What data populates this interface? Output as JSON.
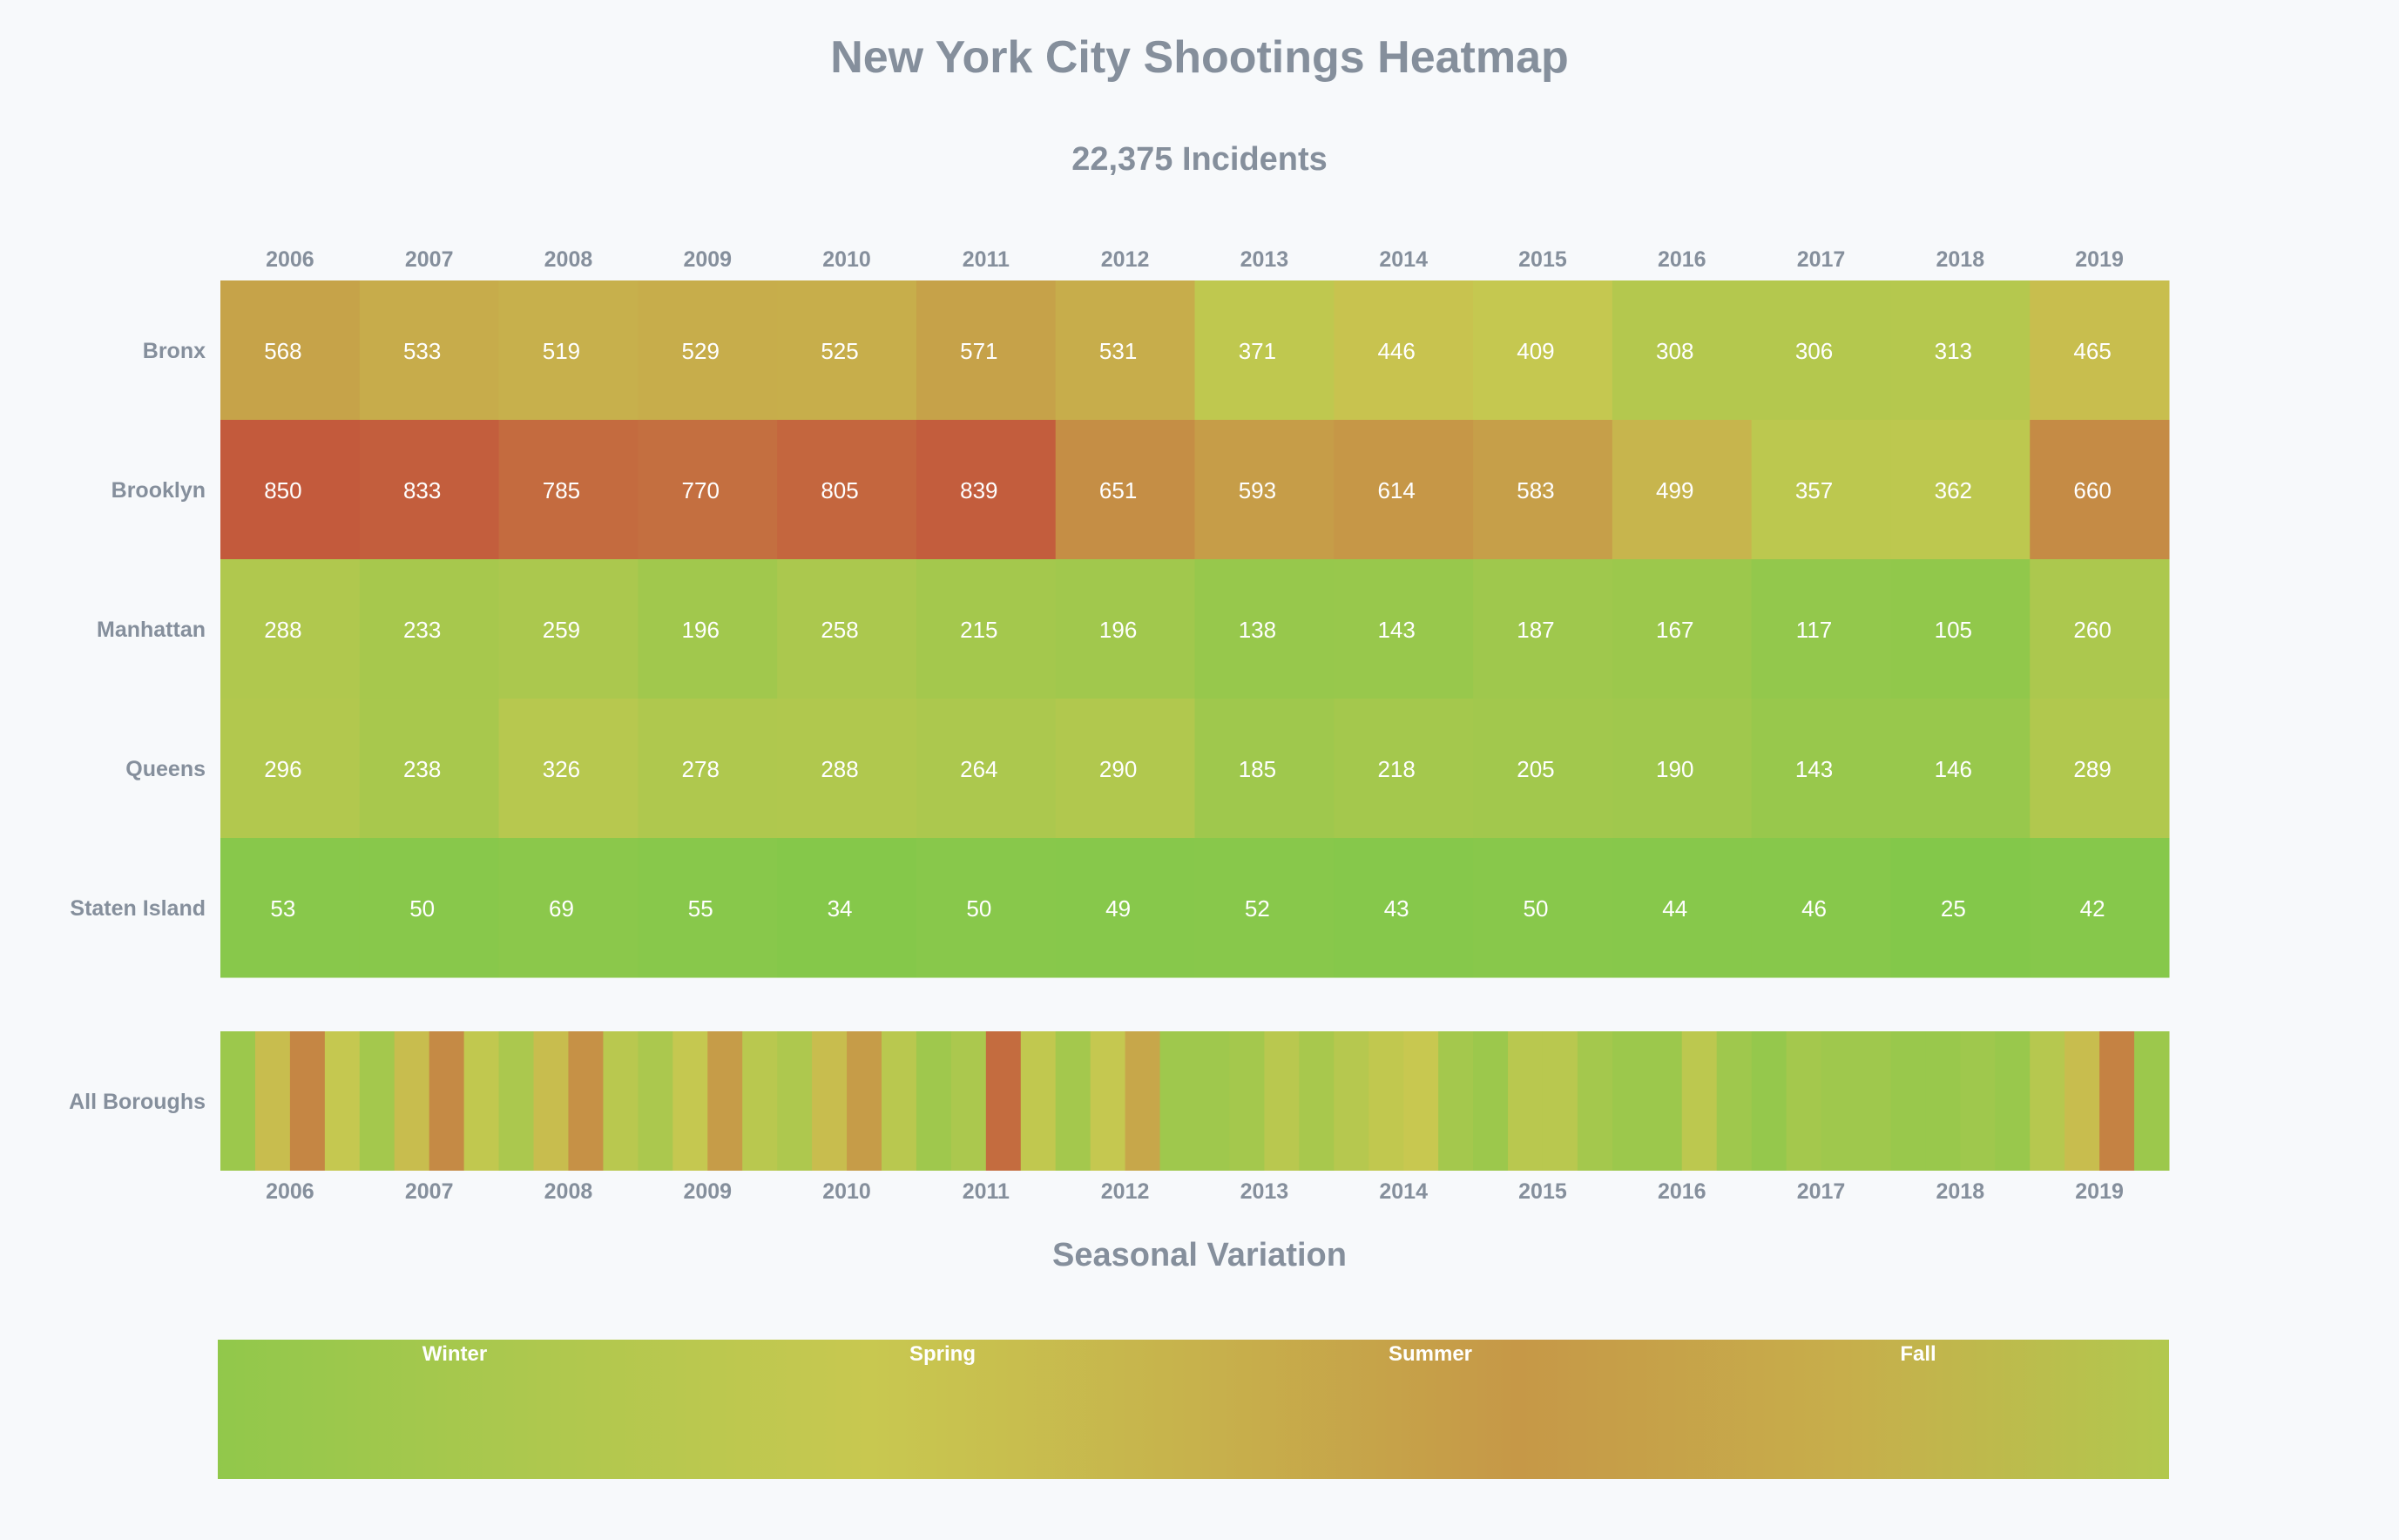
{
  "title": "New York City Shootings Heatmap",
  "subtitle": "22,375 Incidents",
  "seasonal_title": "Seasonal Variation",
  "chart_data": [
    {
      "type": "heatmap",
      "name": "borough_by_year",
      "years": [
        "2006",
        "2007",
        "2008",
        "2009",
        "2010",
        "2011",
        "2012",
        "2013",
        "2014",
        "2015",
        "2016",
        "2017",
        "2018",
        "2019"
      ],
      "boroughs": [
        "Bronx",
        "Brooklyn",
        "Manhattan",
        "Queens",
        "Staten Island"
      ],
      "values": [
        [
          568,
          533,
          519,
          529,
          525,
          571,
          531,
          371,
          446,
          409,
          308,
          306,
          313,
          465
        ],
        [
          850,
          833,
          785,
          770,
          805,
          839,
          651,
          593,
          614,
          583,
          499,
          357,
          362,
          660
        ],
        [
          288,
          233,
          259,
          196,
          258,
          215,
          196,
          138,
          143,
          187,
          167,
          117,
          105,
          260
        ],
        [
          296,
          238,
          326,
          278,
          288,
          264,
          290,
          185,
          218,
          205,
          190,
          143,
          146,
          289
        ],
        [
          53,
          50,
          69,
          55,
          34,
          50,
          49,
          52,
          43,
          50,
          44,
          46,
          25,
          42
        ]
      ],
      "color_scale": [
        "#7fc84a",
        "#c8c850",
        "#c35a3c"
      ]
    },
    {
      "type": "heatmap",
      "name": "all_boroughs_by_quarter",
      "row_label": "All Boroughs",
      "years": [
        "2006",
        "2007",
        "2008",
        "2009",
        "2010",
        "2011",
        "2012",
        "2013",
        "2014",
        "2015",
        "2016",
        "2017",
        "2018",
        "2019"
      ],
      "intensity": [
        [
          0.2,
          0.55,
          0.8,
          0.48
        ],
        [
          0.25,
          0.55,
          0.78,
          0.45
        ],
        [
          0.3,
          0.55,
          0.75,
          0.4
        ],
        [
          0.3,
          0.48,
          0.7,
          0.4
        ],
        [
          0.32,
          0.55,
          0.7,
          0.4
        ],
        [
          0.22,
          0.3,
          0.92,
          0.45
        ],
        [
          0.25,
          0.48,
          0.65,
          0.22
        ],
        [
          0.22,
          0.25,
          0.4,
          0.28
        ],
        [
          0.38,
          0.45,
          0.5,
          0.25
        ],
        [
          0.2,
          0.4,
          0.4,
          0.25
        ],
        [
          0.2,
          0.2,
          0.42,
          0.22
        ],
        [
          0.15,
          0.25,
          0.22,
          0.22
        ],
        [
          0.18,
          0.18,
          0.22,
          0.18
        ],
        [
          0.38,
          0.55,
          0.82,
          0.2
        ]
      ]
    },
    {
      "type": "heatmap",
      "name": "seasonal_variation",
      "seasons": [
        "Winter",
        "Spring",
        "Summer",
        "Fall"
      ],
      "intensity": [
        0.12,
        0.32,
        0.5,
        0.6,
        0.72,
        0.62,
        0.35
      ]
    }
  ]
}
